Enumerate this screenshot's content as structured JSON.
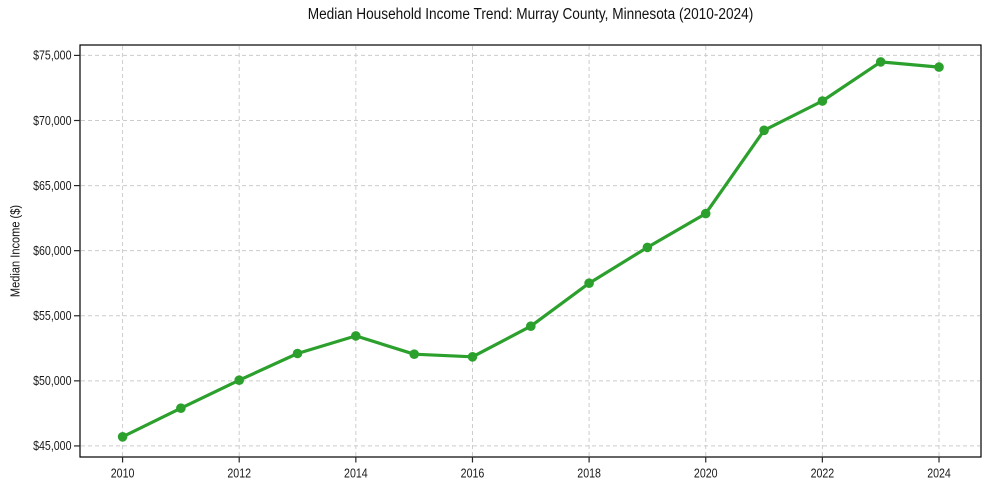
{
  "chart_data": {
    "type": "line",
    "title": "Median Household Income Trend: Murray County, Minnesota (2010-2024)",
    "ylabel": "Median Income ($)",
    "xlabel": "",
    "x": [
      2010,
      2011,
      2012,
      2013,
      2014,
      2015,
      2016,
      2017,
      2018,
      2019,
      2020,
      2021,
      2022,
      2023,
      2024
    ],
    "values": [
      45700,
      47900,
      50050,
      52100,
      53450,
      52050,
      51850,
      54200,
      57500,
      60250,
      62850,
      69250,
      71500,
      74500,
      74100
    ],
    "x_ticks": [
      2010,
      2012,
      2014,
      2016,
      2018,
      2020,
      2022,
      2024
    ],
    "x_tick_labels": [
      "2010",
      "2012",
      "2014",
      "2016",
      "2018",
      "2020",
      "2022",
      "2024"
    ],
    "y_ticks": [
      45000,
      50000,
      55000,
      60000,
      65000,
      70000,
      75000
    ],
    "y_tick_labels": [
      "$45,000",
      "$50,000",
      "$55,000",
      "$60,000",
      "$65,000",
      "$70,000",
      "$75,000"
    ],
    "xlim": [
      2009.27,
      2024.72
    ],
    "ylim": [
      44150,
      75800
    ],
    "grid": true,
    "grid_style": "dashed",
    "legend": false,
    "line_color": "#2ca02c",
    "marker": "circle",
    "marker_color": "#2ca02c",
    "grid_color": "#cccccc",
    "axis_color": "#000000",
    "tick_color": "#262626",
    "text_color": "#1a1a1a",
    "background_color": "#ffffff"
  }
}
